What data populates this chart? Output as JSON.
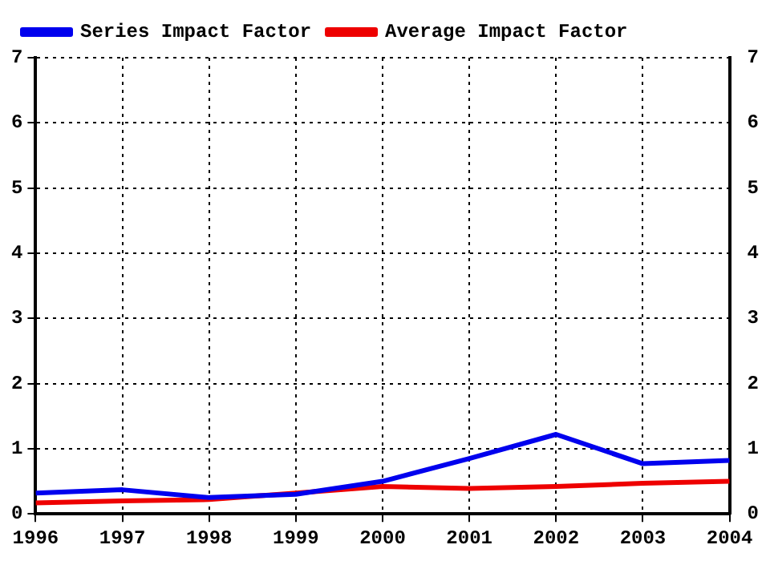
{
  "chart_data": {
    "type": "line",
    "x": [
      1996,
      1997,
      1998,
      1999,
      2000,
      2001,
      2002,
      2003,
      2004
    ],
    "series": [
      {
        "name": "Series Impact Factor",
        "color": "#0000ee",
        "values": [
          0.32,
          0.37,
          0.25,
          0.3,
          0.5,
          0.85,
          1.22,
          0.77,
          0.82
        ]
      },
      {
        "name": "Average Impact Factor",
        "color": "#ee0000",
        "values": [
          0.17,
          0.2,
          0.22,
          0.32,
          0.42,
          0.39,
          0.42,
          0.47,
          0.5
        ]
      }
    ],
    "xlim": [
      1996,
      2004
    ],
    "xticks": [
      1996,
      1997,
      1998,
      1999,
      2000,
      2001,
      2002,
      2003,
      2004
    ],
    "ylim": [
      0,
      7
    ],
    "yticks": [
      0,
      1,
      2,
      3,
      4,
      5,
      6,
      7
    ],
    "y2lim": [
      0,
      7
    ],
    "y2ticks": [
      0,
      1,
      2,
      3,
      4,
      5,
      6,
      7
    ],
    "grid": true,
    "legend": "top left",
    "marker": "none",
    "line_style": "solid"
  }
}
